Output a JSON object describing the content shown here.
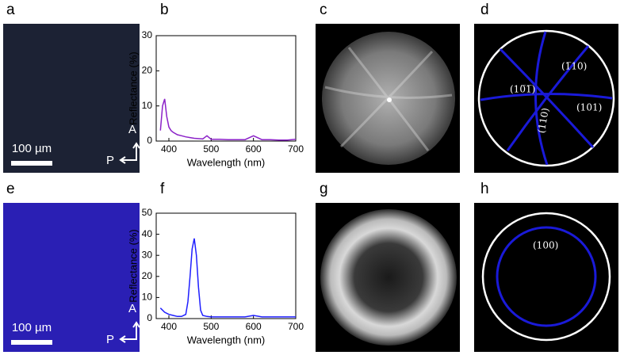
{
  "panel_labels": [
    "a",
    "b",
    "c",
    "d",
    "e",
    "f",
    "g",
    "h"
  ],
  "micrographs": [
    {
      "scale_bar": "100 µm",
      "analyzer": "A",
      "polarizer": "P"
    },
    {
      "scale_bar": "100 µm",
      "analyzer": "A",
      "polarizer": "P"
    }
  ],
  "diagrams": [
    {
      "planes": [
        "(10̅1̅)",
        "(1̅10)",
        "(101)",
        "(110)"
      ]
    },
    {
      "planes": [
        "(100)"
      ]
    }
  ],
  "chart_data": [
    {
      "type": "line",
      "xlabel": "Wavelength (nm)",
      "ylabel": "Reflectance (%)",
      "color": "#8b22c8",
      "x": [
        380,
        385,
        390,
        395,
        400,
        405,
        410,
        420,
        430,
        440,
        450,
        460,
        480,
        490,
        500,
        520,
        540,
        560,
        580,
        600,
        620,
        640,
        660,
        680,
        700
      ],
      "values": [
        3,
        10,
        12,
        7,
        4,
        3,
        2.5,
        1.8,
        1.5,
        1.2,
        1,
        0.8,
        0.6,
        1.5,
        0.5,
        0.5,
        0.4,
        0.4,
        0.4,
        1.5,
        0.4,
        0.4,
        0.3,
        0.3,
        0.5
      ],
      "xlim": [
        370,
        700
      ],
      "xticks": [
        400,
        500,
        600,
        700
      ],
      "ylim": [
        0,
        30
      ],
      "yticks": [
        0,
        10,
        20,
        30
      ]
    },
    {
      "type": "line",
      "xlabel": "Wavelength (nm)",
      "ylabel": "Reflectance (%)",
      "color": "#1f1fff",
      "x": [
        380,
        390,
        400,
        410,
        420,
        430,
        440,
        445,
        450,
        455,
        460,
        465,
        470,
        475,
        480,
        490,
        500,
        520,
        540,
        560,
        580,
        600,
        620,
        640,
        660,
        680,
        700
      ],
      "values": [
        5,
        3,
        2,
        1.5,
        1,
        1,
        2,
        8,
        20,
        33,
        38,
        30,
        15,
        4,
        1.5,
        1,
        0.8,
        0.8,
        0.8,
        0.8,
        0.8,
        1.5,
        0.8,
        0.8,
        0.8,
        0.8,
        0.8
      ],
      "xlim": [
        370,
        700
      ],
      "xticks": [
        400,
        500,
        600,
        700
      ],
      "ylim": [
        0,
        50
      ],
      "yticks": [
        0,
        10,
        20,
        30,
        40,
        50
      ]
    }
  ]
}
